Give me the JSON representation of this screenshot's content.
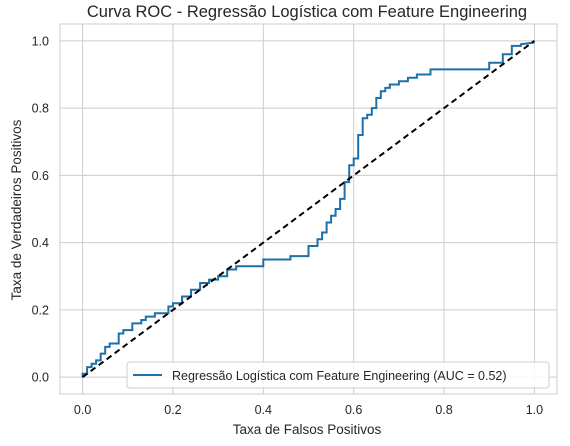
{
  "chart_data": {
    "type": "line",
    "title": "Curva ROC - Regressão Logística com Feature Engineering",
    "xlabel": "Taxa de Falsos Positivos",
    "ylabel": "Taxa de Verdadeiros Positivos",
    "xlim": [
      -0.05,
      1.05
    ],
    "ylim": [
      -0.05,
      1.05
    ],
    "xticks": [
      "0.0",
      "0.2",
      "0.4",
      "0.6",
      "0.8",
      "1.0"
    ],
    "yticks": [
      "0.0",
      "0.2",
      "0.4",
      "0.6",
      "0.8",
      "1.0"
    ],
    "grid": true,
    "legend_position": "lower-right",
    "colors": {
      "roc": "#1f6fa8",
      "diagonal": "#000000",
      "grid": "#cccccc",
      "spine": "#cccccc"
    },
    "series": [
      {
        "name": "Regressão Logística com Feature Engineering (AUC = 0.52)",
        "style": "solid-steps",
        "x": [
          0.0,
          0.0,
          0.01,
          0.01,
          0.02,
          0.02,
          0.03,
          0.03,
          0.04,
          0.04,
          0.05,
          0.05,
          0.06,
          0.06,
          0.08,
          0.08,
          0.09,
          0.09,
          0.11,
          0.11,
          0.13,
          0.13,
          0.14,
          0.14,
          0.16,
          0.16,
          0.19,
          0.19,
          0.2,
          0.2,
          0.22,
          0.22,
          0.24,
          0.24,
          0.26,
          0.26,
          0.28,
          0.28,
          0.3,
          0.3,
          0.32,
          0.32,
          0.34,
          0.34,
          0.4,
          0.4,
          0.46,
          0.46,
          0.5,
          0.5,
          0.52,
          0.52,
          0.53,
          0.53,
          0.54,
          0.54,
          0.55,
          0.55,
          0.56,
          0.56,
          0.57,
          0.57,
          0.58,
          0.58,
          0.59,
          0.59,
          0.6,
          0.6,
          0.61,
          0.61,
          0.62,
          0.62,
          0.63,
          0.63,
          0.64,
          0.64,
          0.65,
          0.65,
          0.66,
          0.66,
          0.67,
          0.67,
          0.68,
          0.68,
          0.7,
          0.7,
          0.72,
          0.72,
          0.74,
          0.74,
          0.77,
          0.77,
          0.9,
          0.9,
          0.93,
          0.93,
          0.95,
          0.95,
          0.97,
          0.97,
          1.0
        ],
        "y": [
          0.0,
          0.01,
          0.01,
          0.03,
          0.03,
          0.04,
          0.04,
          0.05,
          0.05,
          0.07,
          0.07,
          0.09,
          0.09,
          0.1,
          0.1,
          0.13,
          0.13,
          0.14,
          0.14,
          0.16,
          0.16,
          0.17,
          0.17,
          0.18,
          0.18,
          0.19,
          0.19,
          0.21,
          0.21,
          0.22,
          0.22,
          0.24,
          0.24,
          0.26,
          0.26,
          0.28,
          0.28,
          0.29,
          0.29,
          0.3,
          0.3,
          0.32,
          0.32,
          0.33,
          0.33,
          0.35,
          0.35,
          0.36,
          0.36,
          0.39,
          0.39,
          0.41,
          0.41,
          0.43,
          0.43,
          0.46,
          0.46,
          0.48,
          0.48,
          0.5,
          0.5,
          0.53,
          0.53,
          0.58,
          0.58,
          0.63,
          0.63,
          0.65,
          0.65,
          0.72,
          0.72,
          0.77,
          0.77,
          0.78,
          0.78,
          0.8,
          0.8,
          0.83,
          0.83,
          0.85,
          0.85,
          0.86,
          0.86,
          0.87,
          0.87,
          0.88,
          0.88,
          0.89,
          0.89,
          0.9,
          0.9,
          0.915,
          0.915,
          0.935,
          0.935,
          0.96,
          0.96,
          0.985,
          0.985,
          0.99,
          0.995
        ]
      },
      {
        "style": "dashed",
        "x": [
          0.0,
          1.0
        ],
        "y": [
          0.0,
          1.0
        ]
      }
    ]
  }
}
